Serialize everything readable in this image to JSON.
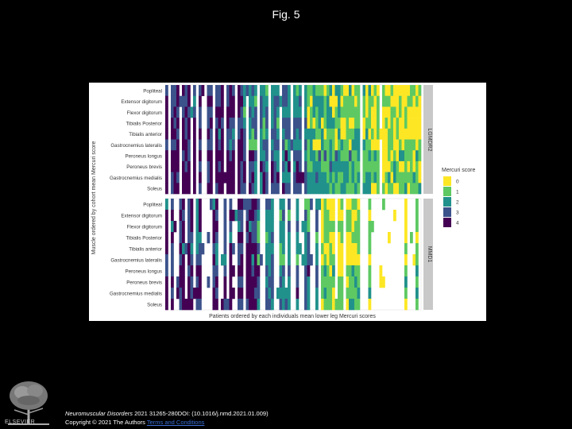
{
  "slide": {
    "title": "Fig. 5"
  },
  "footer": {
    "journal": "Neuromuscular Disorders",
    "citation": " 2021 31265-280DOI: (10.1016/j.nmd.2021.01.009)",
    "copyright": "Copyright © 2021 The Authors",
    "terms_link": "Terms and Conditions"
  },
  "logo": {
    "text": "ELSEVIER",
    "icon": "elsevier-tree-icon"
  },
  "chart_data": {
    "type": "heatmap",
    "ylabel": "Muscle ordered by cohort mean Mercuri score",
    "xlabel": "Patients ordered by each individuals mean lower leg Mercuri scores",
    "muscles": [
      "Popliteal",
      "Extensor digitorum",
      "Flexor digitorum",
      "Tibialis Posterior",
      "Tibialis anterior",
      "Gastrocnemius lateralis",
      "Peroneus longus",
      "Peroneus brevis",
      "Gastrocnemius medialis",
      "Soleus"
    ],
    "facets": [
      "LGMDR2",
      "MMD1"
    ],
    "legend": {
      "title": "Mercuri score",
      "levels": [
        "0",
        "1",
        "2",
        "3",
        "4"
      ],
      "colors": [
        "#fde725",
        "#5ec962",
        "#21918c",
        "#3b528b",
        "#440154"
      ]
    },
    "patients_per_panel": 92,
    "grid": true
  }
}
